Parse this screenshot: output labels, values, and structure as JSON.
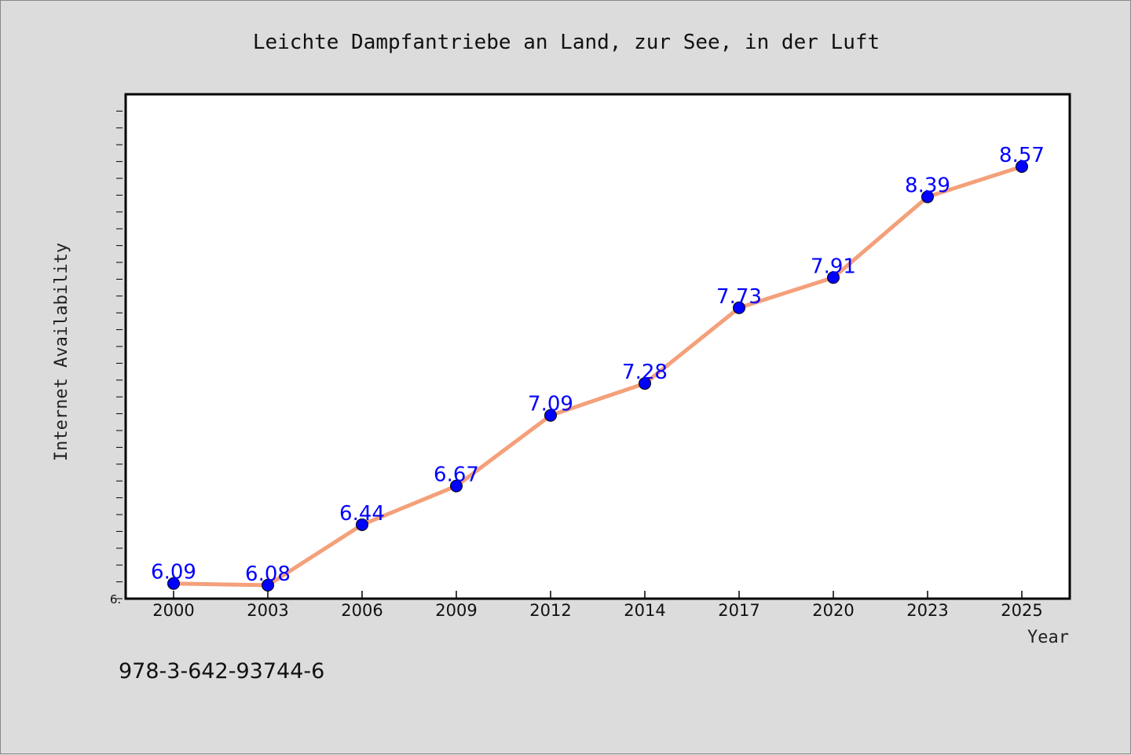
{
  "chart_data": {
    "type": "line",
    "title": "Leichte Dampfantriebe an Land, zur See, in der Luft",
    "xlabel": "Year",
    "ylabel": "Internet Availability",
    "x": [
      "2000",
      "2003",
      "2006",
      "2009",
      "2012",
      "2014",
      "2017",
      "2020",
      "2023",
      "2025"
    ],
    "series": [
      {
        "values": [
          6.09,
          6.08,
          6.44,
          6.67,
          7.09,
          7.28,
          7.73,
          7.91,
          8.39,
          8.57
        ],
        "line_color": "#f4a07a",
        "marker_color": "#0000ff"
      }
    ],
    "data_labels": [
      "6.09",
      "6.08",
      "6.44",
      "6.67",
      "7.09",
      "7.28",
      "7.73",
      "7.91",
      "8.39",
      "8.57"
    ],
    "ylim": [
      6.0,
      9.0
    ],
    "y_tick_labels": [
      "6."
    ],
    "grid": false,
    "label_color": "#0000ff"
  },
  "footer": {
    "isbn": "978-3-642-93744-6"
  }
}
